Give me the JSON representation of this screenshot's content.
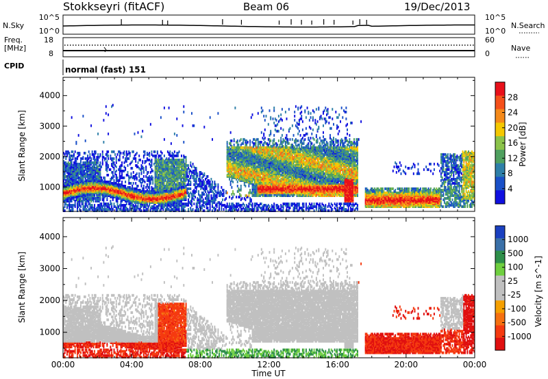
{
  "header": {
    "title": "Stokkseyri (fitACF)",
    "beam": "Beam 06",
    "date": "19/Dec/2013"
  },
  "noise_panel": {
    "left_label": "N.Sky",
    "left_ticks": [
      "10^5",
      "10^0"
    ],
    "right_label": "N.Search",
    "right_ticks": [
      "10^5",
      "10^0"
    ]
  },
  "freq_panel": {
    "left_label_1": "Freq.",
    "left_label_2": "[MHz]",
    "left_ticks": [
      "18",
      "8"
    ],
    "right_label": "Nave",
    "right_ticks": [
      "60",
      "0"
    ]
  },
  "cpid": {
    "label": "CPID",
    "value": "normal (fast) 151"
  },
  "chart_data": [
    {
      "type": "heatmap",
      "name": "power",
      "ylabel": "Slant Range [km]",
      "yticks": [
        "4000",
        "3000",
        "2000",
        "1000"
      ],
      "ylim": [
        200,
        4600
      ],
      "xlim_hours": [
        0,
        24
      ],
      "colorbar_title": "Power [dB]",
      "colorbar_ticks": [
        "28",
        "24",
        "20",
        "16",
        "12",
        "8",
        "4"
      ],
      "colorbar_colors": [
        "#e8101a",
        "#f5501a",
        "#f58a1a",
        "#f5c800",
        "#8bc34a",
        "#4fa05f",
        "#2e7fa8",
        "#1a50c8",
        "#1010e0"
      ],
      "features": [
        {
          "t0": 0.0,
          "t1": 7.0,
          "r0": 500,
          "r1": 1800,
          "level": "mixed"
        },
        {
          "t0": 9.5,
          "t1": 17.0,
          "r0": 700,
          "r1": 2300,
          "level": "strong"
        },
        {
          "t0": 17.5,
          "t1": 22.0,
          "r0": 400,
          "r1": 900,
          "level": "strong"
        },
        {
          "t0": 22.0,
          "t1": 24.0,
          "r0": 400,
          "r1": 2000,
          "level": "weak"
        }
      ]
    },
    {
      "type": "heatmap",
      "name": "velocity",
      "ylabel": "Slant Range [km]",
      "yticks": [
        "4000",
        "3000",
        "2000",
        "1000"
      ],
      "ylim": [
        200,
        4600
      ],
      "xlim_hours": [
        0,
        24
      ],
      "colorbar_title": "Velocity [m s^-1]",
      "colorbar_ticks": [
        "1000",
        "500",
        "100",
        "25",
        "-25",
        "-100",
        "-500",
        "-1000"
      ],
      "colorbar_colors": [
        "#1a40c0",
        "#3a70a8",
        "#2e8f4a",
        "#6fcf3f",
        "#c0c0c0",
        "#c0c0c0",
        "#f5a000",
        "#f57010",
        "#f53a10",
        "#e01010"
      ]
    }
  ],
  "xaxis": {
    "ticks": [
      "00:00",
      "04:00",
      "08:00",
      "12:00",
      "16:00",
      "20:00",
      "00:00"
    ],
    "label": "Time UT"
  }
}
